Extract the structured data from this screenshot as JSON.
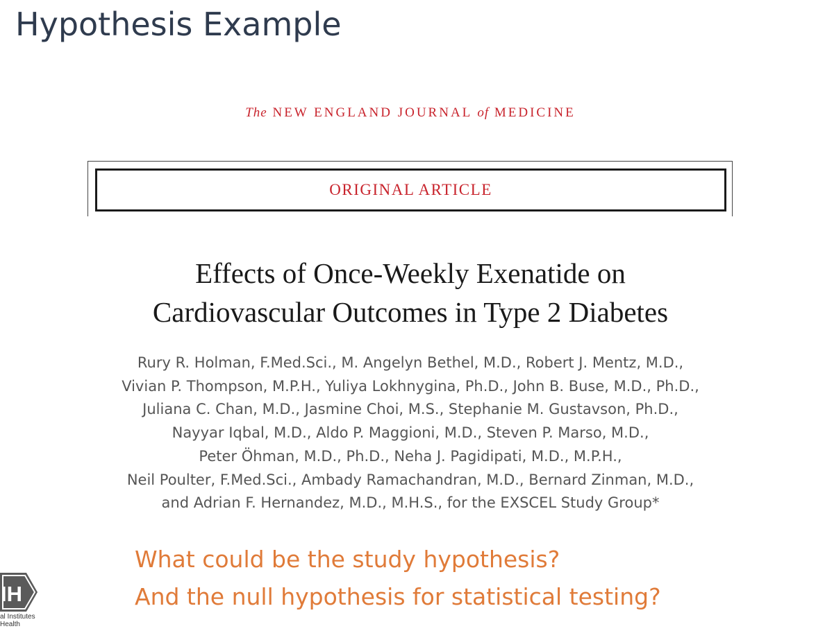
{
  "slide": {
    "title": "Hypothesis Example"
  },
  "journal": {
    "prefix": "The",
    "name_part1": "NEW ENGLAND JOURNAL",
    "connector": "of",
    "name_part2": "MEDICINE",
    "section_label": "ORIGINAL ARTICLE",
    "accent_color": "#c8232c"
  },
  "article": {
    "title_lines": [
      "Effects of Once-Weekly Exenatide on",
      "Cardiovascular Outcomes in Type 2 Diabetes"
    ],
    "author_lines": [
      "Rury R. Holman, F.Med.Sci., M. Angelyn Bethel, M.D., Robert J. Mentz, M.D.,",
      "Vivian P. Thompson, M.P.H., Yuliya Lokhnygina, Ph.D., John B. Buse, M.D., Ph.D.,",
      "Juliana C. Chan, M.D., Jasmine Choi, M.S., Stephanie M. Gustavson, Ph.D.,",
      "Nayyar Iqbal, M.D., Aldo P. Maggioni, M.D., Steven P. Marso, M.D.,",
      "Peter Öhman, M.D., Ph.D., Neha J. Pagidipati, M.D., M.P.H.,",
      "Neil Poulter, F.Med.Sci., Ambady Ramachandran, M.D., Bernard Zinman, M.D.,",
      "and Adrian F. Hernandez, M.D., M.H.S., for the EXSCEL Study Group*"
    ]
  },
  "questions": {
    "line1": "What could be the study hypothesis?",
    "line2": "And the null hypothesis for statistical testing?",
    "color": "#e07b39"
  },
  "logo": {
    "icon": "nih-logo-icon",
    "mark_text": "IH",
    "caption_line1": "al Institutes",
    "caption_line2": "Health"
  }
}
